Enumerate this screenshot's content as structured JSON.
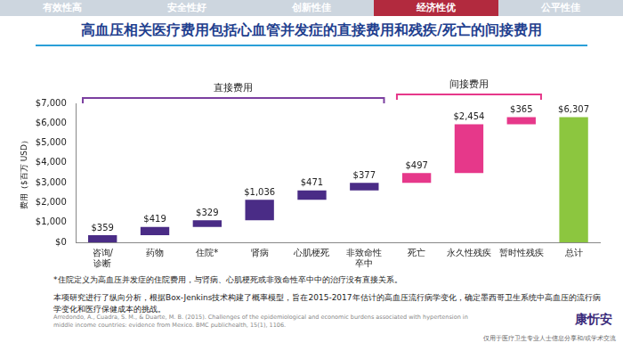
{
  "header": {
    "tabs": [
      "有效性高",
      "安全性好",
      "创新性佳",
      "经济性优",
      "公平性佳"
    ],
    "active_tab": "经济性优",
    "title": "高血压相关医疗费用包括心血管并发症的直接费用和残疾/死亡的间接费用"
  },
  "chart_data": {
    "type": "waterfall",
    "y_label": "费用（$百万 USD）",
    "categories": [
      "咨询/诊断",
      "药物",
      "住院*",
      "肾病",
      "心肌梗死",
      "非致命性卒中",
      "死亡",
      "永久性残疾",
      "暂时性残疾",
      "总计"
    ],
    "values": [
      359,
      419,
      329,
      1036,
      471,
      377,
      497,
      2454,
      365,
      6307
    ],
    "value_labels": [
      "$359",
      "$419",
      "$329",
      "$1,036",
      "$471",
      "$377",
      "$497",
      "$2,454",
      "$365",
      "$6,307"
    ],
    "colors": [
      "#4a2c86",
      "#4a2c86",
      "#4a2c86",
      "#4a2c86",
      "#4a2c86",
      "#4a2c86",
      "#e6388a",
      "#e6388a",
      "#e6388a",
      "#8cc63f"
    ],
    "data_labels": true,
    "grid": false,
    "ylim": [
      0,
      7000
    ],
    "yticks": [
      {
        "value": 0,
        "label": "$0"
      },
      {
        "value": 1000,
        "label": "$1,000"
      },
      {
        "value": 2000,
        "label": "$2,000"
      },
      {
        "value": 3000,
        "label": "$3,000"
      },
      {
        "value": 4000,
        "label": "$4,000"
      },
      {
        "value": 5000,
        "label": "$5,000"
      },
      {
        "value": 6000,
        "label": "$6,000"
      },
      {
        "value": 7000,
        "label": "$7,000"
      }
    ],
    "annotations": [
      {
        "text": "直接费用",
        "from": "咨询/诊断",
        "to": "非致命性卒中",
        "color": "#7b3fa0"
      },
      {
        "text": "间接费用",
        "from": "死亡",
        "to": "暂时性残疾",
        "color": "#e6388a"
      }
    ]
  },
  "footer": {
    "notes": [
      "*住院定义为高血压并发症的住院费用，与肾病、心肌梗死或非致命性卒中中的治疗没有直接关系。",
      "本项研究进行了纵向分析，根据Box-Jenkins技术构建了概率模型，旨在2015-2017年估计的高血压流行病学变化，确定墨西哥卫生系统中高血压的流行病学变化和医疗保健成本的挑战。"
    ],
    "reference": "Arredondo, A., Cuadra, S. M., & Duarte, M. B. (2015). Challenges of the epidemiological and economic burdens associated with hypertension in middle income countries: evidence from Mexico. BMC publichealth, 15(1), 1106.",
    "logo": "康忻安",
    "disclaimer": "仅用于医疗卫生专业人士信息分享和/或学术交流"
  }
}
